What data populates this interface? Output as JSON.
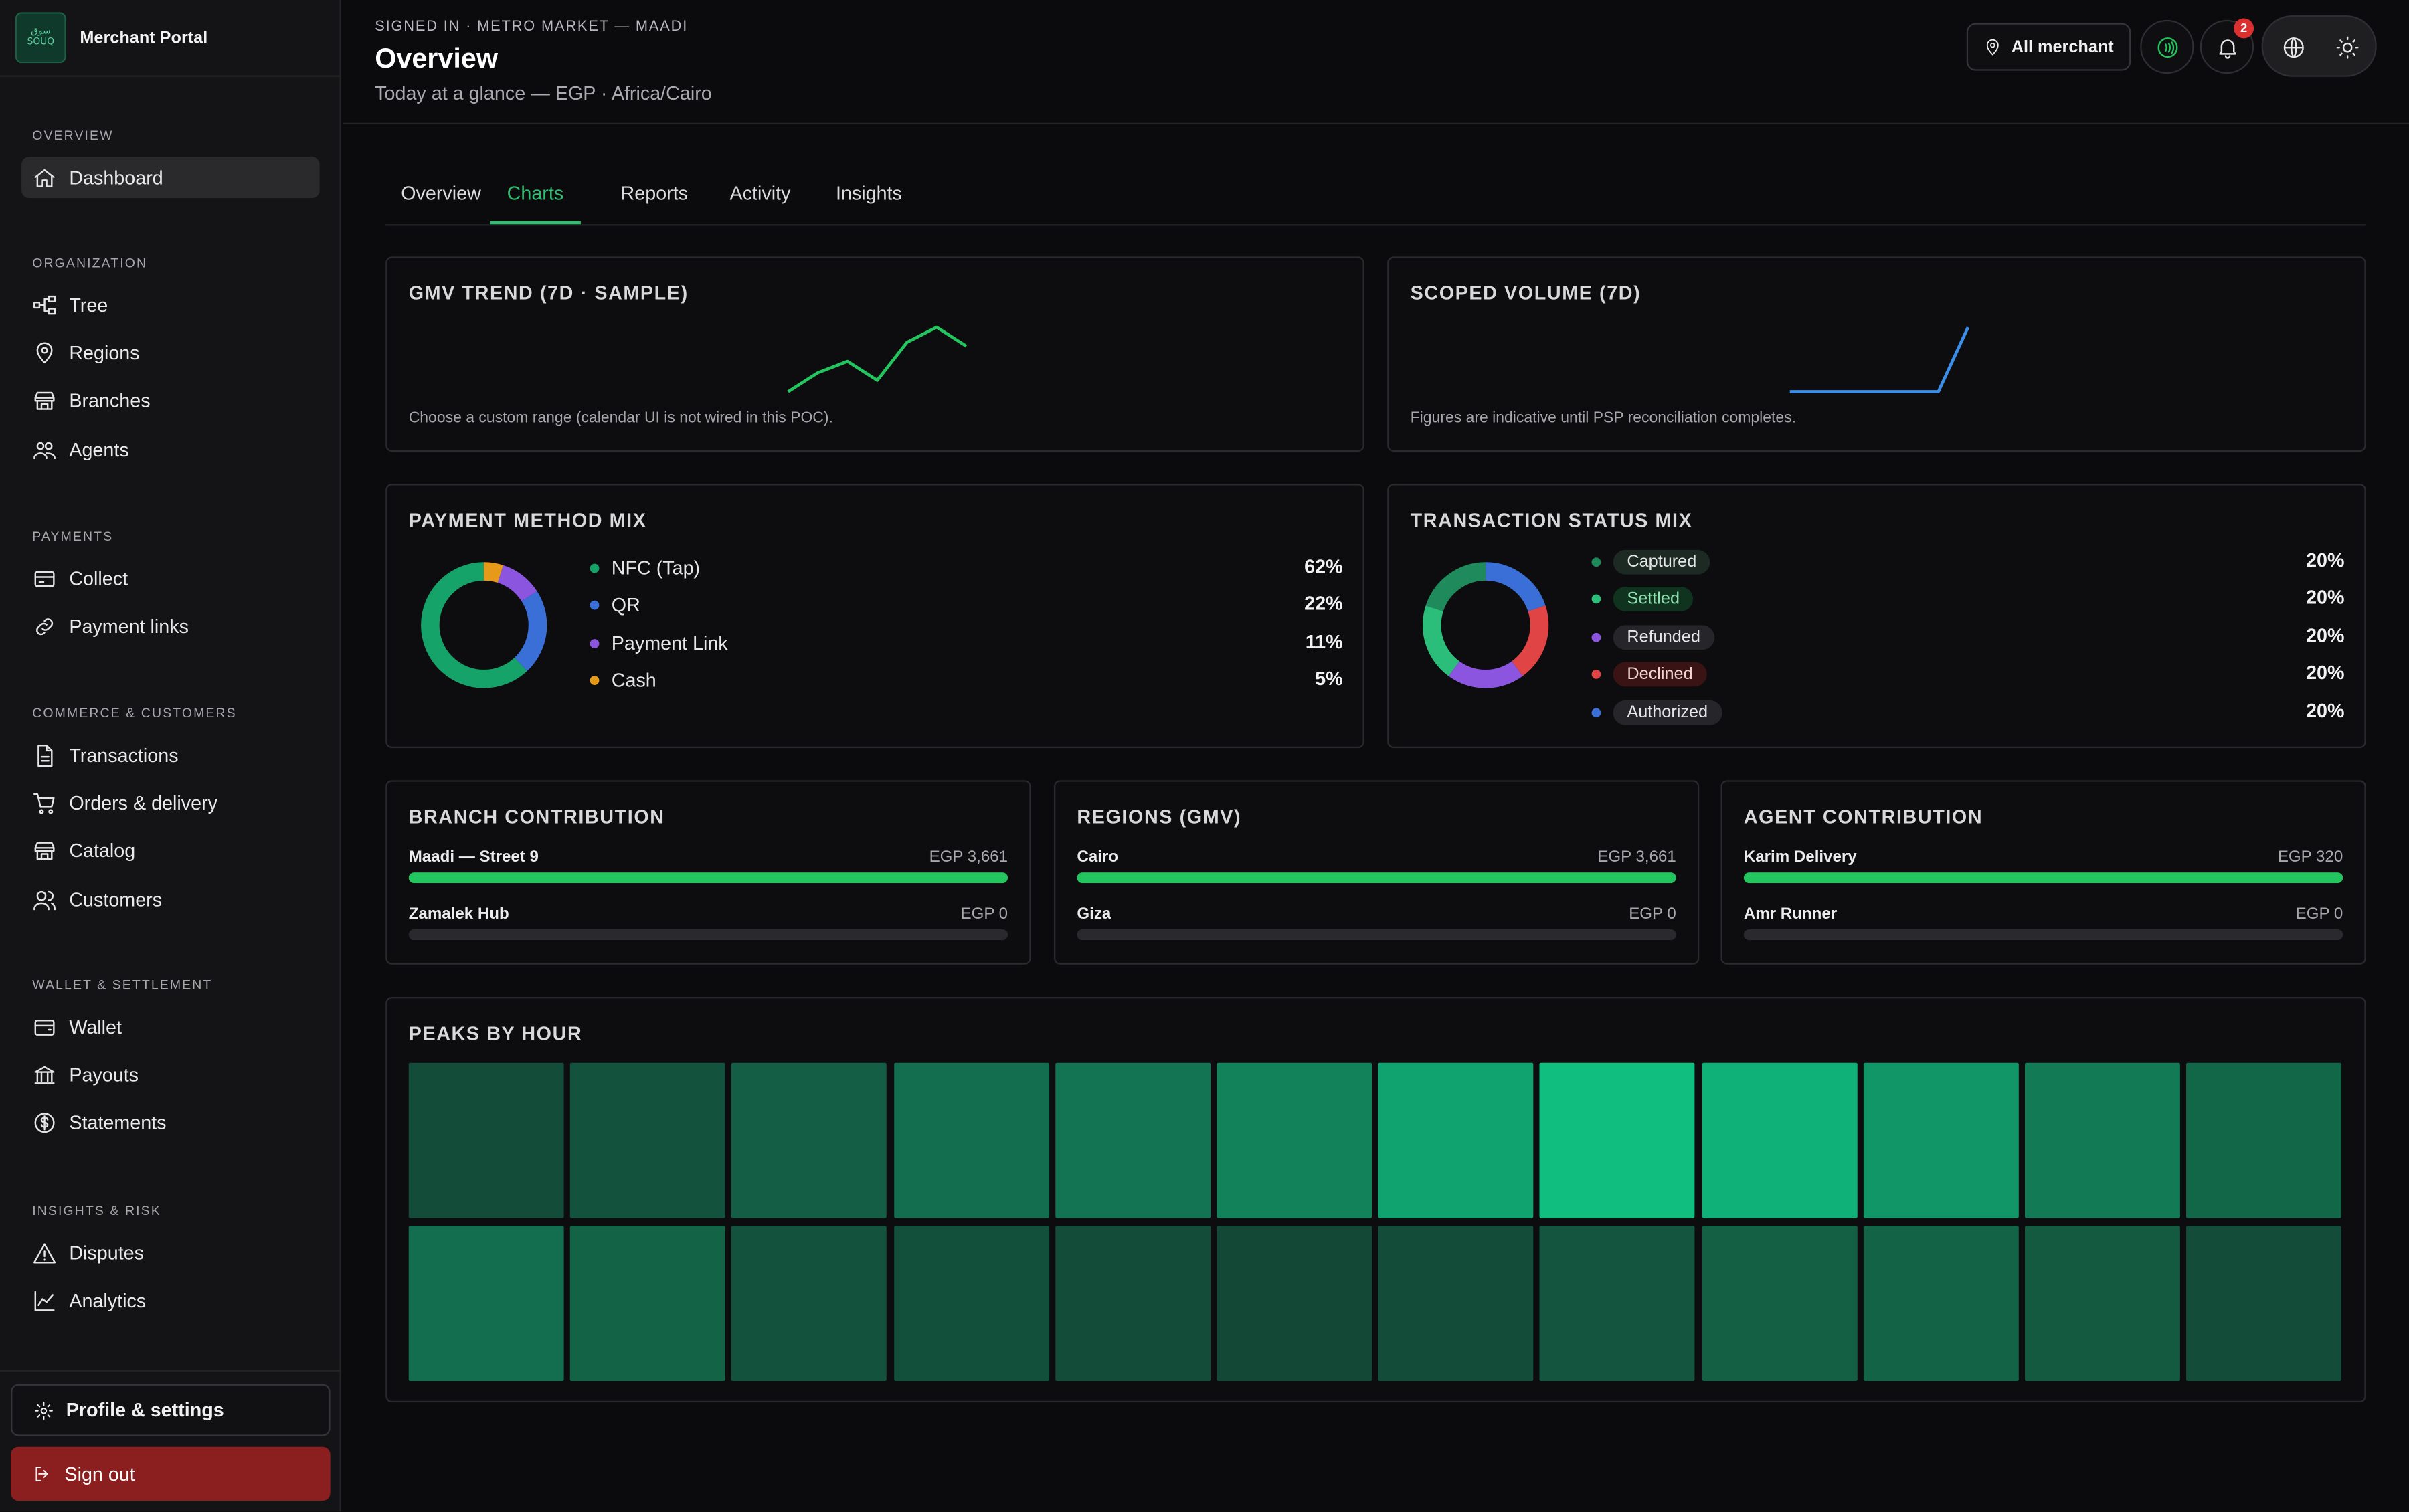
{
  "app": {
    "name": "Merchant Portal",
    "logo_text": "سوق\nSOUQ"
  },
  "sidebar": {
    "sections": [
      {
        "title": "OVERVIEW",
        "items": [
          {
            "label": "Dashboard",
            "icon": "home-icon",
            "active": true
          }
        ]
      },
      {
        "title": "ORGANIZATION",
        "items": [
          {
            "label": "Tree",
            "icon": "tree-icon"
          },
          {
            "label": "Regions",
            "icon": "map-pin-icon"
          },
          {
            "label": "Branches",
            "icon": "store-icon"
          },
          {
            "label": "Agents",
            "icon": "users-icon"
          }
        ]
      },
      {
        "title": "PAYMENTS",
        "items": [
          {
            "label": "Collect",
            "icon": "card-icon"
          },
          {
            "label": "Payment links",
            "icon": "link-icon"
          }
        ]
      },
      {
        "title": "COMMERCE & CUSTOMERS",
        "items": [
          {
            "label": "Transactions",
            "icon": "file-icon"
          },
          {
            "label": "Orders & delivery",
            "icon": "cart-icon"
          },
          {
            "label": "Catalog",
            "icon": "store-icon"
          },
          {
            "label": "Customers",
            "icon": "customers-icon"
          }
        ]
      },
      {
        "title": "WALLET & SETTLEMENT",
        "items": [
          {
            "label": "Wallet",
            "icon": "wallet-icon"
          },
          {
            "label": "Payouts",
            "icon": "bank-icon"
          },
          {
            "label": "Statements",
            "icon": "dollar-icon"
          }
        ]
      },
      {
        "title": "INSIGHTS & RISK",
        "items": [
          {
            "label": "Disputes",
            "icon": "alert-icon"
          },
          {
            "label": "Analytics",
            "icon": "chart-icon"
          }
        ]
      }
    ],
    "profile_label": "Profile & settings",
    "signout_label": "Sign out"
  },
  "header": {
    "signed_in": "SIGNED IN · METRO MARKET — MAADI",
    "title": "Overview",
    "subtitle": "Today at a glance — EGP · Africa/Cairo",
    "merchant_button": "All merchant",
    "notification_count": "2"
  },
  "tabs": [
    {
      "label": "Overview",
      "active": false
    },
    {
      "label": "Charts",
      "active": true
    },
    {
      "label": "Reports",
      "active": false
    },
    {
      "label": "Activity",
      "active": false
    },
    {
      "label": "Insights",
      "active": false
    }
  ],
  "colors": {
    "accent": "#2fbf71",
    "bar": "#22c55e",
    "danger": "#8b1f1f"
  },
  "gmv_trend": {
    "title": "GMV TREND (7D · SAMPLE)",
    "note": "Choose a custom range (calendar UI is not wired in this POC).",
    "values": [
      2,
      3,
      3.6,
      2.6,
      4.6,
      5.4,
      4.4
    ],
    "color": "#22c55e"
  },
  "scoped_volume": {
    "title": "SCOPED VOLUME (7D)",
    "note": "Figures are indicative until PSP reconciliation completes.",
    "values": [
      0,
      0,
      0,
      0,
      0,
      0,
      1
    ],
    "color": "#3b8ee8"
  },
  "payment_mix": {
    "title": "PAYMENT METHOD MIX",
    "items": [
      {
        "label": "NFC (Tap)",
        "pct": "62%",
        "value": 62,
        "color": "#16a36a"
      },
      {
        "label": "QR",
        "pct": "22%",
        "value": 22,
        "color": "#3b6fd8"
      },
      {
        "label": "Payment Link",
        "pct": "11%",
        "value": 11,
        "color": "#8b55e0"
      },
      {
        "label": "Cash",
        "pct": "5%",
        "value": 5,
        "color": "#e59a1a"
      }
    ]
  },
  "status_mix": {
    "title": "TRANSACTION STATUS MIX",
    "items": [
      {
        "label": "Captured",
        "pct": "20%",
        "value": 20,
        "color": "#1f8a5b",
        "pill_bg": "#1c2a23",
        "pill_fg": "#e6e6e8"
      },
      {
        "label": "Settled",
        "pct": "20%",
        "value": 20,
        "color": "#2bbd7a",
        "pill_bg": "#10331f",
        "pill_fg": "#8fe0b0"
      },
      {
        "label": "Refunded",
        "pct": "20%",
        "value": 20,
        "color": "#8b55e0",
        "pill_bg": "#26262a",
        "pill_fg": "#e6e6e8"
      },
      {
        "label": "Declined",
        "pct": "20%",
        "value": 20,
        "color": "#e04444",
        "pill_bg": "#3a1414",
        "pill_fg": "#f0d4d4"
      },
      {
        "label": "Authorized",
        "pct": "20%",
        "value": 20,
        "color": "#3b6fd8",
        "pill_bg": "#26262a",
        "pill_fg": "#e6e6e8"
      }
    ]
  },
  "branch_contribution": {
    "title": "BRANCH CONTRIBUTION",
    "rows": [
      {
        "label": "Maadi — Street 9",
        "value": "EGP 3,661",
        "fraction": 1.0
      },
      {
        "label": "Zamalek Hub",
        "value": "EGP 0",
        "fraction": 0.0
      }
    ]
  },
  "regions_gmv": {
    "title": "REGIONS (GMV)",
    "rows": [
      {
        "label": "Cairo",
        "value": "EGP 3,661",
        "fraction": 1.0
      },
      {
        "label": "Giza",
        "value": "EGP 0",
        "fraction": 0.0
      }
    ]
  },
  "agent_contribution": {
    "title": "AGENT CONTRIBUTION",
    "rows": [
      {
        "label": "Karim Delivery",
        "value": "EGP 320",
        "fraction": 1.0
      },
      {
        "label": "Amr Runner",
        "value": "EGP 0",
        "fraction": 0.0
      }
    ]
  },
  "peaks_by_hour": {
    "title": "PEAKS BY HOUR",
    "rows": [
      [
        0.15,
        0.2,
        0.28,
        0.4,
        0.45,
        0.55,
        0.8,
        1.0,
        0.9,
        0.7,
        0.5,
        0.35
      ],
      [
        0.4,
        0.32,
        0.2,
        0.18,
        0.15,
        0.12,
        0.15,
        0.22,
        0.3,
        0.32,
        0.25,
        0.15
      ]
    ]
  }
}
